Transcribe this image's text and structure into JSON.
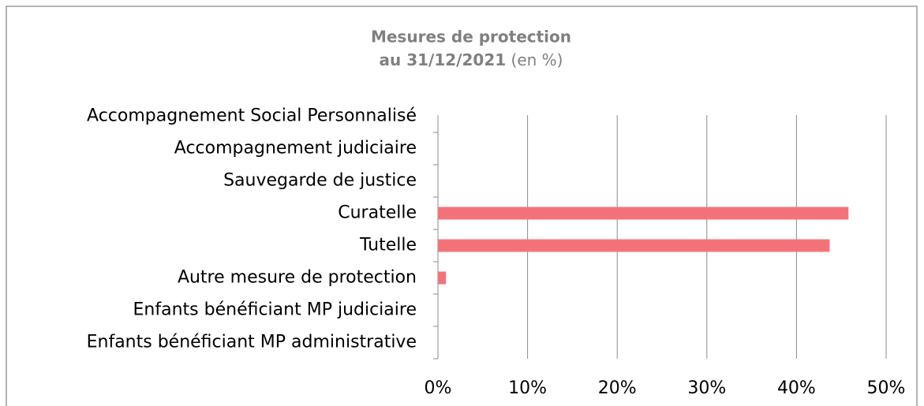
{
  "chart_data": {
    "type": "bar",
    "orientation": "horizontal",
    "title": "Mesures de protection",
    "subtitle": "au 31/12/2021",
    "subtitle_note": "(en %)",
    "categories": [
      "Accompagnement Social Personnalisé",
      "Accompagnement judiciaire",
      "Sauvegarde de justice",
      "Curatelle",
      "Tutelle",
      "Autre mesure de protection",
      "Enfants bénéficiant MP judiciaire",
      "Enfants bénéficiant MP administrative"
    ],
    "values": [
      0,
      0,
      0,
      45.8,
      43.7,
      0.9,
      0,
      0
    ],
    "color": "#f4737a",
    "xlim": [
      0,
      50
    ],
    "xticks": [
      {
        "value": 0,
        "label": "0%"
      },
      {
        "value": 10,
        "label": "10%"
      },
      {
        "value": 20,
        "label": "20%"
      },
      {
        "value": 30,
        "label": "30%"
      },
      {
        "value": 40,
        "label": "40%"
      },
      {
        "value": 50,
        "label": "50%"
      }
    ],
    "grid": true
  }
}
